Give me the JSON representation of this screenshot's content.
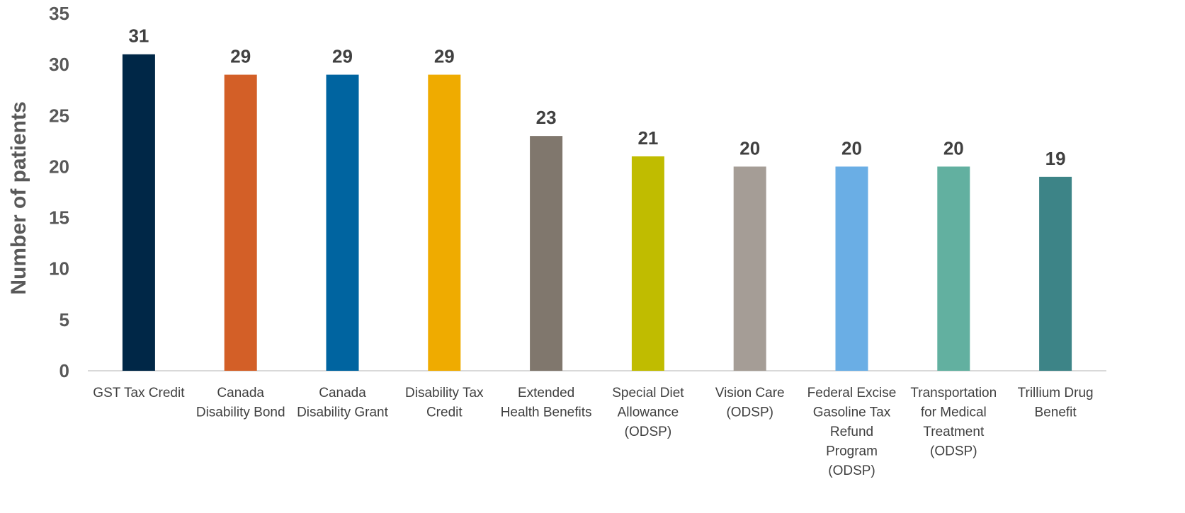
{
  "chart_data": {
    "type": "bar",
    "title": "",
    "xlabel": "",
    "ylabel": "Number of patients",
    "ylim": [
      0,
      35
    ],
    "yticks": [
      0,
      5,
      10,
      15,
      20,
      25,
      30,
      35
    ],
    "grid": false,
    "legend": "none",
    "categories": [
      "GST Tax Credit",
      "Canada Disability Bond",
      "Canada Disability Grant",
      "Disability Tax Credit",
      "Extended Health Benefits",
      "Special Diet Allowance (ODSP)",
      "Vision Care (ODSP)",
      "Federal Excise Gasoline Tax Refund Program (ODSP)",
      "Transportation for Medical Treatment (ODSP)",
      "Trillium Drug Benefit"
    ],
    "category_lines": [
      [
        "GST Tax Credit"
      ],
      [
        "Canada",
        "Disability Bond"
      ],
      [
        "Canada",
        "Disability Grant"
      ],
      [
        "Disability Tax",
        "Credit"
      ],
      [
        "Extended",
        "Health Benefits"
      ],
      [
        "Special Diet",
        "Allowance",
        "(ODSP)"
      ],
      [
        "Vision Care",
        "(ODSP)"
      ],
      [
        "Federal Excise",
        "Gasoline Tax",
        "Refund",
        "Program",
        "(ODSP)"
      ],
      [
        "Transportation",
        "for Medical",
        "Treatment",
        "(ODSP)"
      ],
      [
        "Trillium Drug",
        "Benefit"
      ]
    ],
    "values": [
      31,
      29,
      29,
      29,
      23,
      21,
      20,
      20,
      20,
      19
    ],
    "data_labels": true,
    "colors": [
      "#002747",
      "#d35f27",
      "#0064a0",
      "#efab00",
      "#80776d",
      "#c0bc00",
      "#a59d96",
      "#6aaee5",
      "#62b0a0",
      "#3d8487"
    ]
  }
}
